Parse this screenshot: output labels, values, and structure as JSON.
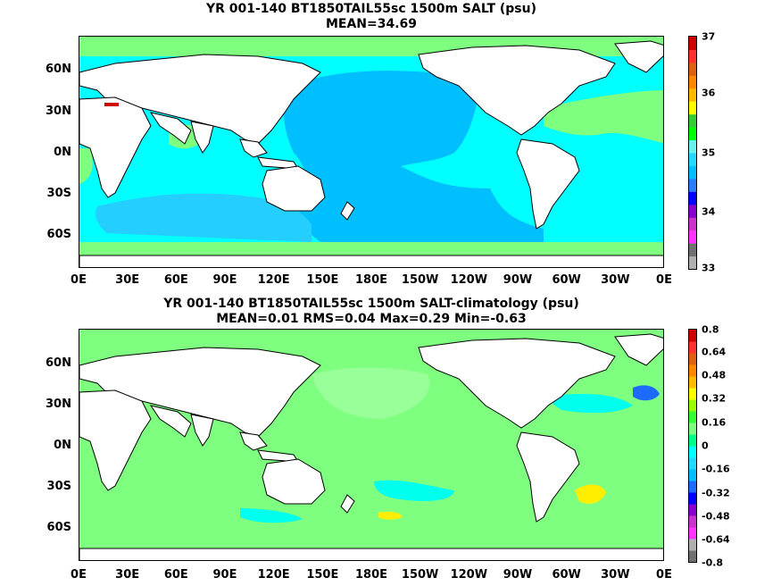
{
  "panel_top": {
    "title": "YR 001-140 BT1850TAIL55sc 1500m SALT (psu)",
    "stats": "MEAN=34.69",
    "colorbar_labels": [
      "37",
      "36",
      "35",
      "34",
      "33"
    ],
    "colorbar_colors": [
      "#b0b0b0",
      "#707070",
      "#ff33ff",
      "#cc33cc",
      "#8800cc",
      "#0000ff",
      "#2b7bff",
      "#00bfff",
      "#22d8ff",
      "#66f0ee",
      "#00ff00",
      "#33cc33",
      "#ffff00",
      "#ffbb00",
      "#ff8800",
      "#e06010",
      "#ff3030",
      "#cc0000"
    ],
    "colors": {
      "ocean_main": "#00bfff",
      "ocean_mid": "#24cfff",
      "ocean_light": "#00ffff",
      "green": "#7fff7f",
      "land": "#ffffff",
      "med": "#cc0000"
    }
  },
  "panel_bottom": {
    "title": "YR 001-140 BT1850TAIL55sc 1500m SALT-climatology (psu)",
    "stats": "MEAN=0.01   RMS=0.04   Max=0.29   Min=-0.63",
    "colorbar_labels": [
      "0.8",
      "0.64",
      "0.48",
      "0.32",
      "0.16",
      "0",
      "-0.16",
      "-0.32",
      "-0.48",
      "-0.64",
      "-0.8"
    ],
    "colorbar_colors": [
      "#707070",
      "#b0b0b0",
      "#ff33ff",
      "#cc33cc",
      "#8800cc",
      "#0000ff",
      "#1e6cff",
      "#00bfff",
      "#22d8ff",
      "#00ffff",
      "#00ff88",
      "#7fff7f",
      "#33ff33",
      "#99ff00",
      "#ffff00",
      "#ffbb00",
      "#ff8800",
      "#e06010",
      "#ff3030",
      "#cc0000"
    ],
    "colors": {
      "ocean_main": "#7fff7f",
      "cyan": "#00ffee",
      "light_green": "#99ff99",
      "yellow": "#ffee00",
      "blue": "#1e6cff",
      "land": "#ffffff"
    }
  },
  "axes": {
    "lat_labels": [
      "60N",
      "30N",
      "0N",
      "30S",
      "60S"
    ],
    "lon_labels": [
      "0E",
      "30E",
      "60E",
      "90E",
      "120E",
      "150E",
      "180E",
      "150W",
      "120W",
      "90W",
      "60W",
      "30W",
      "0E"
    ]
  }
}
